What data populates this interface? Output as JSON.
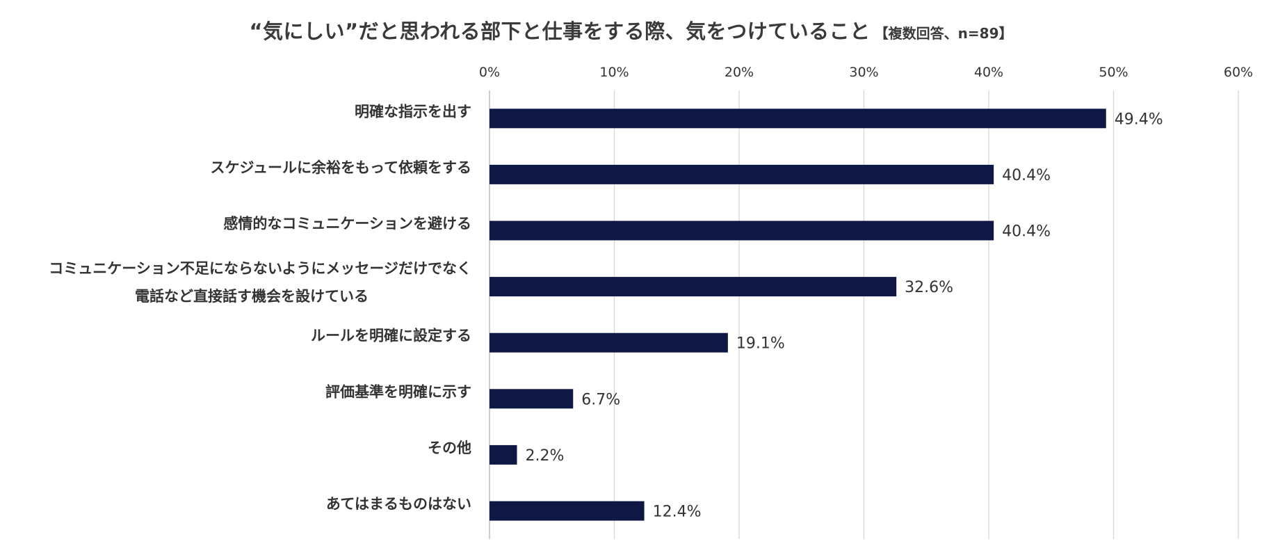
{
  "chart_data": {
    "type": "bar",
    "orientation": "horizontal",
    "title": "“気にしい”だと思われる部下と仕事をする際、気をつけていること",
    "subtitle": "【複数回答、n=89】",
    "categories": [
      [
        "明確な指示を出す"
      ],
      [
        "スケジュールに余裕をもって依頼をする"
      ],
      [
        "感情的なコミュニケーションを避ける"
      ],
      [
        "コミュニケーション不足にならないようにメッセージだけでなく",
        "電話など直接話す機会を設けている"
      ],
      [
        "ルールを明確に設定する"
      ],
      [
        "評価基準を明確に示す"
      ],
      [
        "その他"
      ],
      [
        "あてはまるものはない"
      ]
    ],
    "values": [
      49.4,
      40.4,
      40.4,
      32.6,
      19.1,
      6.7,
      2.2,
      12.4
    ],
    "value_labels": [
      "49.4%",
      "40.4%",
      "40.4%",
      "32.6%",
      "19.1%",
      "6.7%",
      "2.2%",
      "12.4%"
    ],
    "xlim": [
      0,
      60
    ],
    "x_ticks": [
      0,
      10,
      20,
      30,
      40,
      50,
      60
    ],
    "x_tick_labels": [
      "0%",
      "10%",
      "20%",
      "30%",
      "40%",
      "50%",
      "60%"
    ],
    "axis_position": "top",
    "grid": true,
    "bar_color": "#0f1845",
    "grid_color": "#d4d4d4"
  }
}
